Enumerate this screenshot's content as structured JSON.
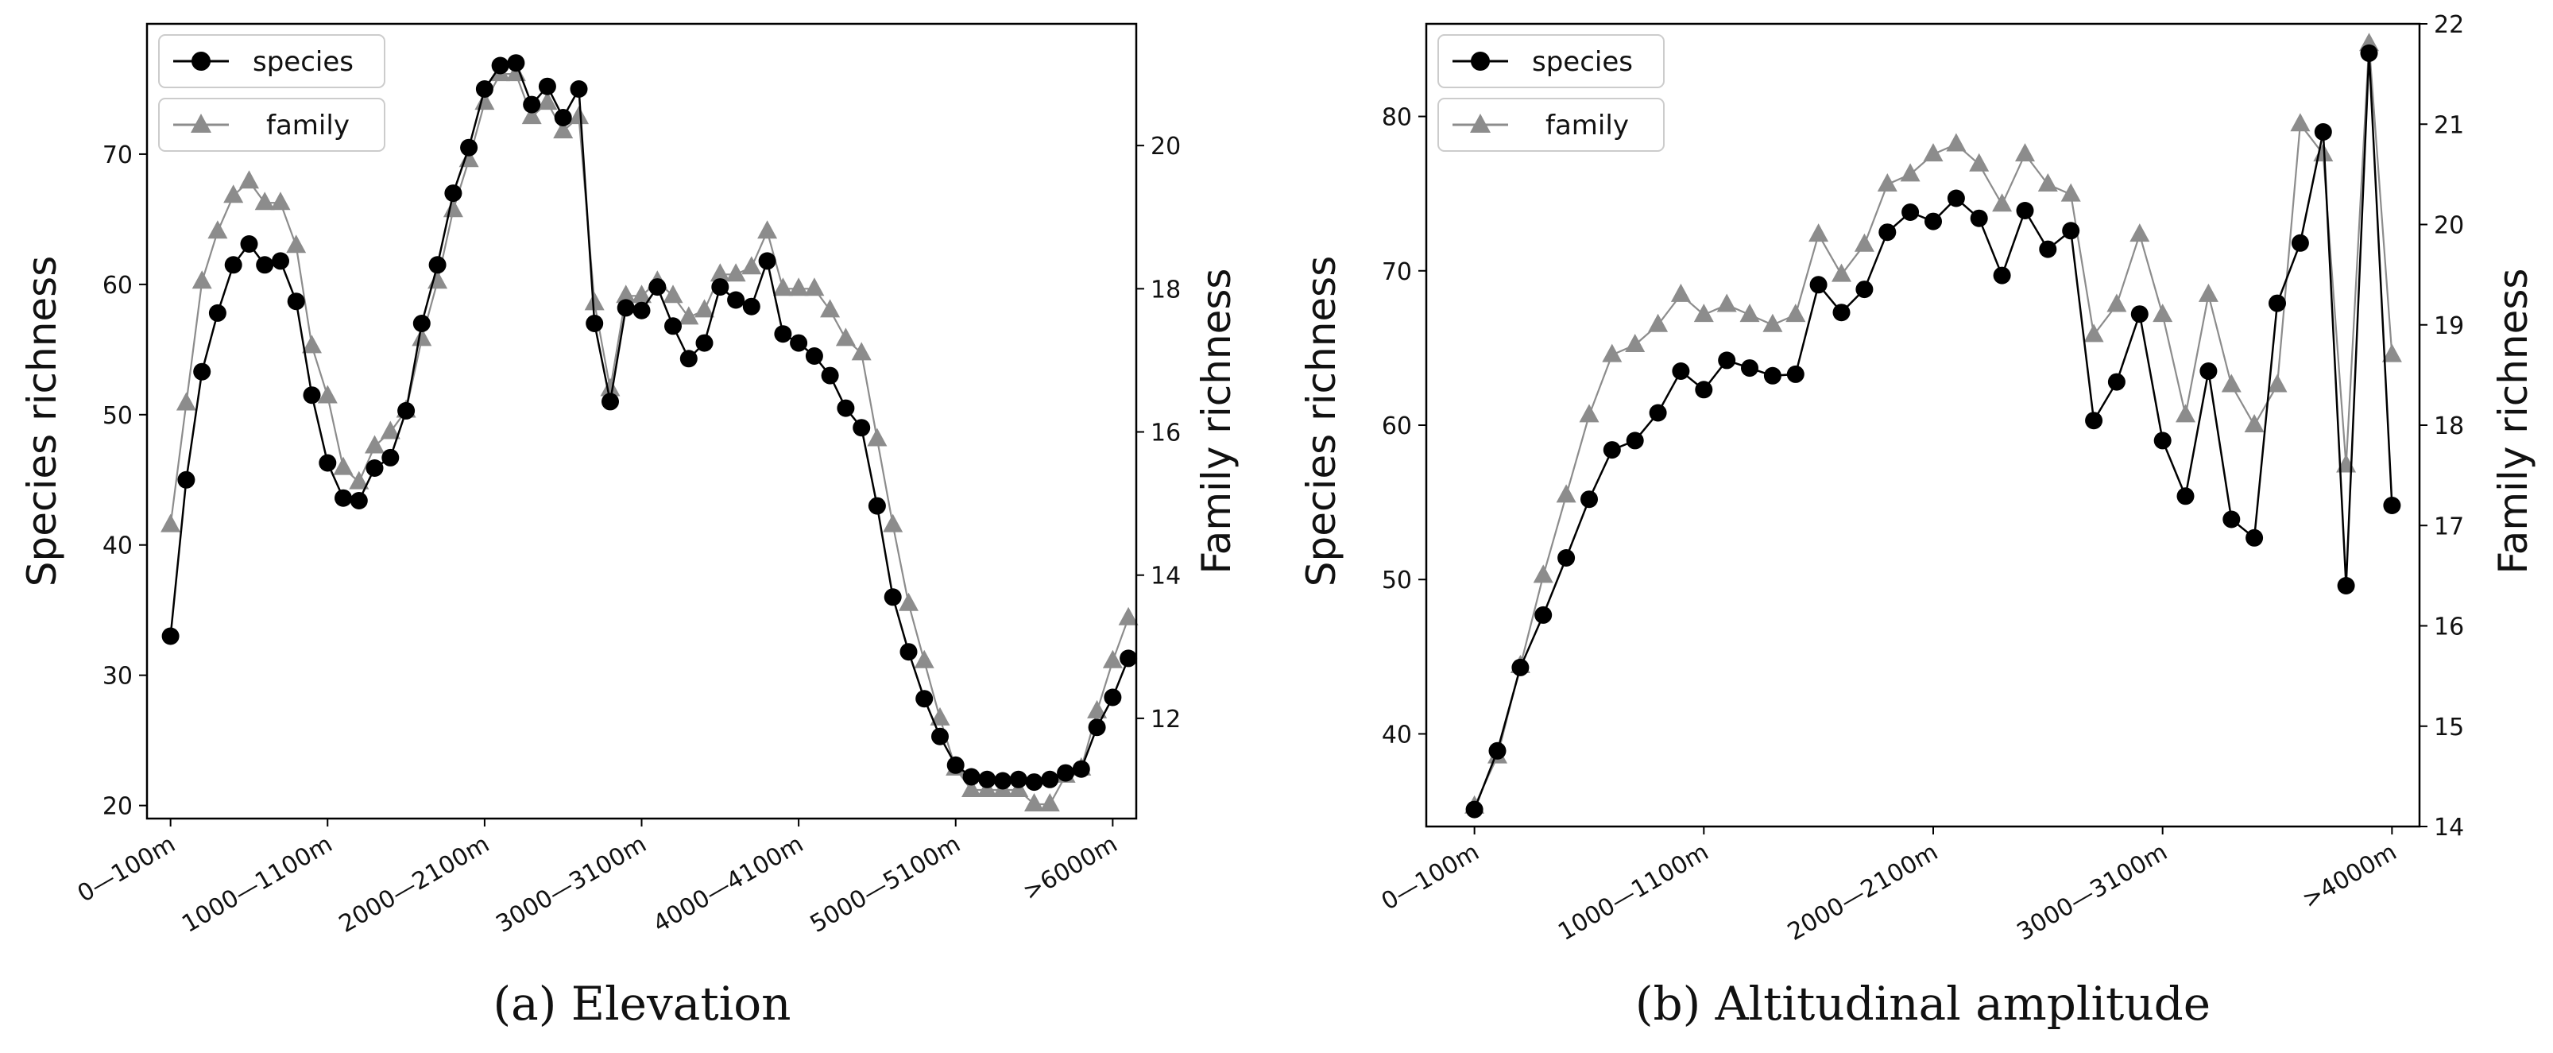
{
  "colors": {
    "species": "#000000",
    "family": "#8c8c8c",
    "axis": "#000000"
  },
  "chart_data": [
    {
      "type": "line",
      "caption": "(a) Elevation",
      "ylabel": "Species richness",
      "y2label": "Family richness",
      "x_ticks": [
        {
          "i": 0,
          "label": "0—100m"
        },
        {
          "i": 10,
          "label": "1000—1100m"
        },
        {
          "i": 20,
          "label": "2000—2100m"
        },
        {
          "i": 30,
          "label": "3000—3100m"
        },
        {
          "i": 40,
          "label": "4000—4100m"
        },
        {
          "i": 50,
          "label": "5000—5100m"
        },
        {
          "i": 60,
          "label": ">6000m"
        }
      ],
      "xlim": [
        -1.5,
        61.5
      ],
      "ylim": [
        19,
        80
      ],
      "yticks": [
        20,
        30,
        40,
        50,
        60,
        70
      ],
      "y2lim": [
        10.6,
        21.7
      ],
      "y2ticks": [
        12,
        14,
        16,
        18,
        20
      ],
      "legend": {
        "species": "species",
        "family": "family",
        "loc": "upper left"
      },
      "series": [
        {
          "name": "species",
          "axis": "left",
          "marker": "circle",
          "values": [
            33,
            45,
            53.3,
            57.8,
            61.5,
            63.1,
            61.5,
            61.8,
            58.7,
            51.5,
            46.3,
            43.6,
            43.4,
            45.9,
            46.7,
            50.3,
            57,
            61.5,
            67,
            70.5,
            75,
            76.8,
            77,
            73.8,
            75.2,
            72.8,
            75,
            57,
            51,
            58.2,
            58,
            59.8,
            56.8,
            54.3,
            55.5,
            59.8,
            58.8,
            58.3,
            61.8,
            56.2,
            55.5,
            54.5,
            53,
            50.5,
            49,
            43,
            36,
            31.8,
            28.2,
            25.3,
            23.1,
            22.2,
            22,
            21.9,
            22,
            21.8,
            22,
            22.5,
            22.8,
            26,
            28.3,
            31.3
          ]
        },
        {
          "name": "family",
          "axis": "right",
          "marker": "triangle",
          "values": [
            14.7,
            16.4,
            18.1,
            18.8,
            19.3,
            19.5,
            19.2,
            19.2,
            18.6,
            17.2,
            16.5,
            15.5,
            15.3,
            15.8,
            16,
            16.3,
            17.3,
            18.1,
            19.1,
            19.8,
            20.6,
            21.0,
            21.0,
            20.4,
            20.6,
            20.2,
            20.4,
            17.8,
            16.6,
            17.9,
            17.9,
            18.1,
            17.9,
            17.6,
            17.7,
            18.2,
            18.2,
            18.3,
            18.8,
            18.0,
            18.0,
            18.0,
            17.7,
            17.3,
            17.1,
            15.9,
            14.7,
            13.6,
            12.8,
            12.0,
            11.3,
            11.0,
            11.0,
            11.0,
            11.0,
            10.8,
            10.8,
            11.2,
            11.3,
            12.1,
            12.8,
            13.4
          ]
        }
      ]
    },
    {
      "type": "line",
      "caption": "(b) Altitudinal amplitude",
      "ylabel": "Species richness",
      "y2label": "Family richness",
      "x_ticks": [
        {
          "i": 0,
          "label": "0—100m"
        },
        {
          "i": 10,
          "label": "1000—1100m"
        },
        {
          "i": 20,
          "label": "2000—2100m"
        },
        {
          "i": 30,
          "label": "3000—3100m"
        },
        {
          "i": 40,
          "label": ">4000m"
        }
      ],
      "xlim": [
        -2.1,
        41.2
      ],
      "ylim": [
        34,
        86
      ],
      "yticks": [
        40,
        50,
        60,
        70,
        80
      ],
      "y2lim": [
        14,
        22
      ],
      "y2ticks": [
        14,
        15,
        16,
        17,
        18,
        19,
        20,
        21,
        22
      ],
      "legend": {
        "species": "species",
        "family": "family",
        "loc": "upper left"
      },
      "series": [
        {
          "name": "species",
          "axis": "left",
          "marker": "circle",
          "values": [
            35.1,
            38.9,
            44.3,
            47.7,
            51.4,
            55.2,
            58.4,
            59,
            60.8,
            63.5,
            62.3,
            64.2,
            63.7,
            63.2,
            63.3,
            69.1,
            67.3,
            68.8,
            72.5,
            73.8,
            73.2,
            74.7,
            73.4,
            69.7,
            73.9,
            71.4,
            72.6,
            60.3,
            62.8,
            67.2,
            59,
            55.4,
            63.5,
            53.9,
            52.7,
            67.9,
            71.8,
            79,
            49.6,
            84.1,
            54.8
          ]
        },
        {
          "name": "family",
          "axis": "right",
          "marker": "triangle",
          "values": [
            14.2,
            14.7,
            15.6,
            16.5,
            17.3,
            18.1,
            18.7,
            18.8,
            19.0,
            19.3,
            19.1,
            19.2,
            19.1,
            19.0,
            19.1,
            19.9,
            19.5,
            19.8,
            20.4,
            20.5,
            20.7,
            20.8,
            20.6,
            20.2,
            20.7,
            20.4,
            20.3,
            18.9,
            19.2,
            19.9,
            19.1,
            18.1,
            19.3,
            18.4,
            18.0,
            18.4,
            21.0,
            20.7,
            17.6,
            21.8,
            18.7
          ]
        }
      ]
    }
  ]
}
